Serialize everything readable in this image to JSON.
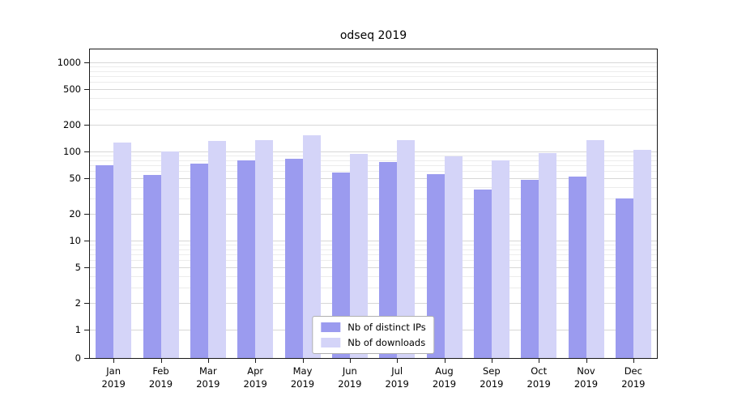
{
  "chart_data": {
    "type": "bar",
    "title": "odseq 2019",
    "scale": "log",
    "grid": true,
    "ylim": [
      0,
      1000
    ],
    "yticks": [
      0,
      1,
      2,
      5,
      10,
      20,
      50,
      100,
      200,
      500,
      1000
    ],
    "categories": [
      "Jan",
      "Feb",
      "Mar",
      "Apr",
      "May",
      "Jun",
      "Jul",
      "Aug",
      "Sep",
      "Oct",
      "Nov",
      "Dec"
    ],
    "year": "2019",
    "legend_position": "lower center",
    "series": [
      {
        "name": "Nb of distinct IPs",
        "color": "#9b9bef",
        "values": [
          70,
          55,
          73,
          79,
          82,
          58,
          76,
          56,
          37,
          48,
          52,
          30
        ]
      },
      {
        "name": "Nb of downloads",
        "color": "#d4d4f8",
        "values": [
          125,
          100,
          130,
          133,
          152,
          93,
          133,
          88,
          80,
          95,
          134,
          105
        ]
      }
    ]
  }
}
